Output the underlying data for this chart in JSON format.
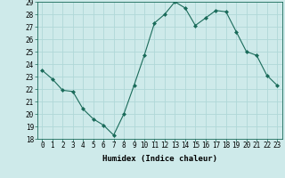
{
  "x": [
    0,
    1,
    2,
    3,
    4,
    5,
    6,
    7,
    8,
    9,
    10,
    11,
    12,
    13,
    14,
    15,
    16,
    17,
    18,
    19,
    20,
    21,
    22,
    23
  ],
  "y": [
    23.5,
    22.8,
    21.9,
    21.8,
    20.4,
    19.6,
    19.1,
    18.3,
    20.0,
    22.3,
    24.7,
    27.3,
    28.0,
    29.0,
    28.5,
    27.1,
    27.7,
    28.3,
    28.2,
    26.6,
    25.0,
    24.7,
    23.1,
    22.3
  ],
  "xlabel": "Humidex (Indice chaleur)",
  "ylim": [
    18,
    29
  ],
  "yticks": [
    18,
    19,
    20,
    21,
    22,
    23,
    24,
    25,
    26,
    27,
    28,
    29
  ],
  "xticks": [
    0,
    1,
    2,
    3,
    4,
    5,
    6,
    7,
    8,
    9,
    10,
    11,
    12,
    13,
    14,
    15,
    16,
    17,
    18,
    19,
    20,
    21,
    22,
    23
  ],
  "line_color": "#1a6b5a",
  "marker": "D",
  "marker_size": 2,
  "bg_color": "#ceeaea",
  "grid_color": "#b0d8d8",
  "xlabel_fontsize": 6.5,
  "tick_fontsize": 5.5
}
